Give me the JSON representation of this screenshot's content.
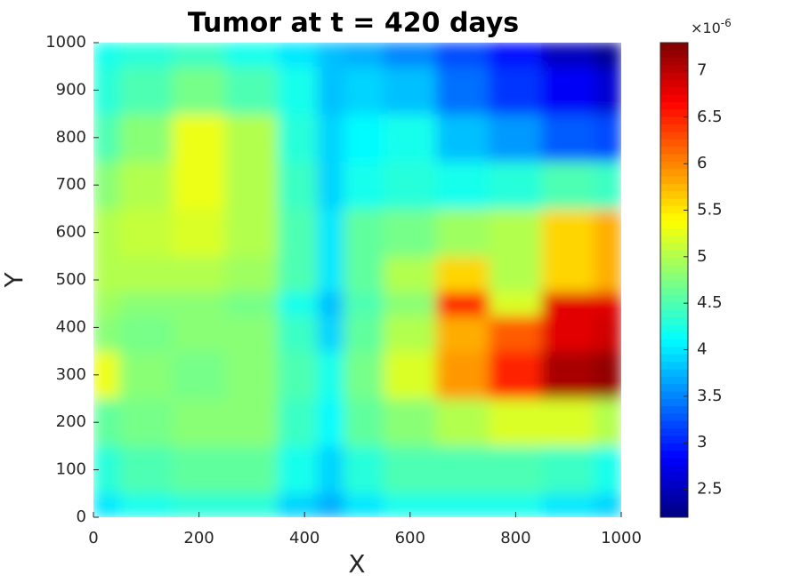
{
  "chart_data": {
    "type": "heatmap",
    "title": "Tumor at t = 420 days",
    "xlabel": "X",
    "ylabel": "Y",
    "colormap": "jet",
    "x": [
      0,
      100,
      200,
      300,
      400,
      450,
      500,
      600,
      700,
      800,
      900,
      1000
    ],
    "y": [
      0,
      100,
      200,
      300,
      400,
      450,
      500,
      600,
      700,
      800,
      900,
      1000
    ],
    "z": [
      [
        4.0,
        4.2,
        4.3,
        4.3,
        3.9,
        3.7,
        4.0,
        4.2,
        4.2,
        4.2,
        4.0,
        3.9
      ],
      [
        4.3,
        4.5,
        4.6,
        4.6,
        4.2,
        3.9,
        4.3,
        4.5,
        4.5,
        4.5,
        4.4,
        4.2
      ],
      [
        4.6,
        4.7,
        4.8,
        4.8,
        4.4,
        4.1,
        4.6,
        4.8,
        5.0,
        5.2,
        5.2,
        5.0
      ],
      [
        5.3,
        4.8,
        4.7,
        4.8,
        4.5,
        4.2,
        4.7,
        5.2,
        5.9,
        6.5,
        7.1,
        7.2
      ],
      [
        4.8,
        4.7,
        4.8,
        4.8,
        4.4,
        3.9,
        4.6,
        5.0,
        5.8,
        6.2,
        6.8,
        6.9
      ],
      [
        4.9,
        4.8,
        4.8,
        4.7,
        4.2,
        3.8,
        4.5,
        4.8,
        6.6,
        5.2,
        6.8,
        6.8
      ],
      [
        5.0,
        5.0,
        5.0,
        4.9,
        4.5,
        4.0,
        4.6,
        5.0,
        5.6,
        5.0,
        5.6,
        5.8
      ],
      [
        5.0,
        5.1,
        5.2,
        5.0,
        4.5,
        4.0,
        4.6,
        4.7,
        4.9,
        5.0,
        5.6,
        5.8
      ],
      [
        4.8,
        5.0,
        5.3,
        5.0,
        4.4,
        3.9,
        4.2,
        4.3,
        4.2,
        4.3,
        4.5,
        4.4
      ],
      [
        4.5,
        4.8,
        5.3,
        5.0,
        4.3,
        3.9,
        4.1,
        4.2,
        3.8,
        3.6,
        3.3,
        3.2
      ],
      [
        4.3,
        4.5,
        4.7,
        4.5,
        4.2,
        3.8,
        3.9,
        3.8,
        3.4,
        3.1,
        2.8,
        2.6
      ],
      [
        4.2,
        4.3,
        4.4,
        4.2,
        4.0,
        3.8,
        3.7,
        3.5,
        3.2,
        2.9,
        2.5,
        2.3
      ]
    ],
    "xlim": [
      0,
      1000
    ],
    "ylim": [
      0,
      1000
    ],
    "xticks": [
      0,
      200,
      400,
      600,
      800,
      1000
    ],
    "yticks": [
      0,
      100,
      200,
      300,
      400,
      500,
      600,
      700,
      800,
      900,
      1000
    ],
    "colorbar": {
      "lim": [
        2.2,
        7.3
      ],
      "ticks": [
        2.5,
        3,
        3.5,
        4,
        4.5,
        5,
        5.5,
        6,
        6.5,
        7
      ],
      "multiplier": "×10",
      "exponent": "-6"
    }
  }
}
